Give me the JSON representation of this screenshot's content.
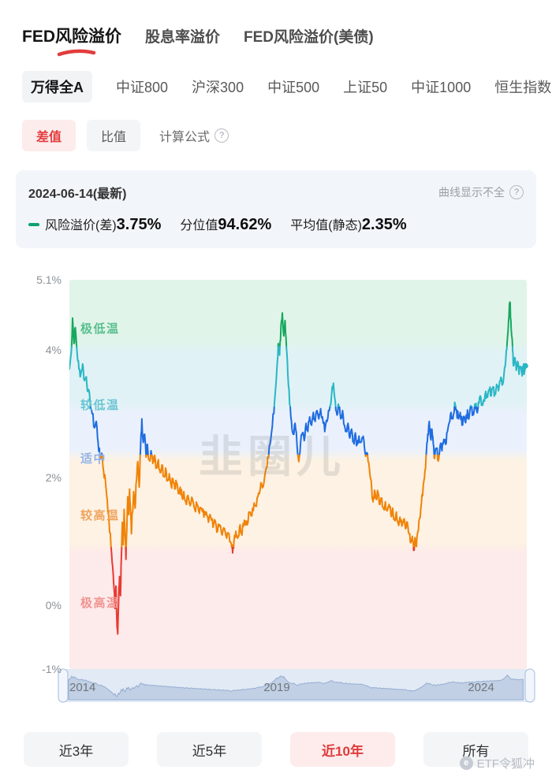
{
  "topnav": {
    "tabs": [
      "FED风险溢价",
      "股息率溢价",
      "FED风险溢价(美债)"
    ],
    "active_index": 0
  },
  "index_tabs": {
    "items": [
      "万得全A",
      "中证800",
      "沪深300",
      "中证500",
      "上证50",
      "中证1000",
      "恒生指数"
    ],
    "active_index": 0
  },
  "mode_tabs": {
    "diff_label": "差值",
    "ratio_label": "比值",
    "formula_label": "计算公式",
    "help_glyph": "?"
  },
  "info_card": {
    "date": "2024-06-14(最新)",
    "curve_note": "曲线显示不全",
    "legend": {
      "premium_label": "风险溢价(差)",
      "premium_value": "3.75%",
      "percentile_label": "分位值",
      "percentile_value": "94.62%",
      "mean_label": "平均值(静态)",
      "mean_value": "2.35%"
    },
    "legend_color": "#0ba26e"
  },
  "watermark_center": "韭圈儿",
  "range_buttons": {
    "items": [
      "近3年",
      "近5年",
      "近10年",
      "所有"
    ],
    "active_index": 2
  },
  "footer_watermark": "ETF令狐冲",
  "chart_data": {
    "type": "line",
    "series_name": "风险溢价(差)",
    "latest": {
      "date": "2024-06-14",
      "value": 3.75,
      "percentile": 94.62,
      "mean_static": 2.35
    },
    "xlim": [
      2014.45,
      2024.48
    ],
    "ylim": [
      5.1,
      -1.0
    ],
    "y_ticks": [
      {
        "v": 5.1,
        "label": "5.1%"
      },
      {
        "v": 4,
        "label": "4%"
      },
      {
        "v": 2,
        "label": "2%"
      },
      {
        "v": 0,
        "label": "0%"
      },
      {
        "v": -1,
        "label": "-1%"
      }
    ],
    "x_ticks": [
      "2014",
      "2019",
      "2024"
    ],
    "zones": [
      {
        "label": "极低温",
        "max": 5.1,
        "min": 4.05,
        "band": "#e1f4e9",
        "line": "#16a85e",
        "label_color": "#58bf8e",
        "label_v": 4.32
      },
      {
        "label": "较低温",
        "max": 4.05,
        "min": 3.1,
        "band": "#e0f2f5",
        "line": "#29b6c5",
        "label_color": "#6cc5d2",
        "label_v": 3.12
      },
      {
        "label": "适中",
        "max": 3.1,
        "min": 2.35,
        "band": "#eaf1fc",
        "line": "#1f6ce0",
        "label_color": "#8fb3ea",
        "label_v": 2.28
      },
      {
        "label": "较高温",
        "max": 2.35,
        "min": 0.9,
        "band": "#fdf2e3",
        "line": "#f08307",
        "label_color": "#f0a45d",
        "label_v": 1.4
      },
      {
        "label": "极高温",
        "max": 0.9,
        "min": -1.2,
        "band": "#fdeaea",
        "line": "#e93a32",
        "label_color": "#f09490",
        "label_v": 0.02
      }
    ],
    "series": [
      [
        2014.45,
        3.7
      ],
      [
        2014.49,
        3.95
      ],
      [
        2014.52,
        4.5
      ],
      [
        2014.55,
        4.1
      ],
      [
        2014.58,
        4.35
      ],
      [
        2014.62,
        3.95
      ],
      [
        2014.66,
        3.7
      ],
      [
        2014.7,
        3.62
      ],
      [
        2014.74,
        3.78
      ],
      [
        2014.78,
        3.52
      ],
      [
        2014.82,
        3.58
      ],
      [
        2014.86,
        3.35
      ],
      [
        2014.9,
        3.22
      ],
      [
        2014.95,
        3.0
      ],
      [
        2015.0,
        2.78
      ],
      [
        2015.04,
        2.88
      ],
      [
        2015.08,
        2.55
      ],
      [
        2015.12,
        2.3
      ],
      [
        2015.16,
        2.38
      ],
      [
        2015.2,
        2.1
      ],
      [
        2015.24,
        1.95
      ],
      [
        2015.28,
        1.65
      ],
      [
        2015.32,
        1.3
      ],
      [
        2015.36,
        0.95
      ],
      [
        2015.4,
        0.6
      ],
      [
        2015.43,
        0.25
      ],
      [
        2015.45,
        -0.05
      ],
      [
        2015.47,
        0.3
      ],
      [
        2015.49,
        -0.2
      ],
      [
        2015.51,
        -0.45
      ],
      [
        2015.53,
        0.1
      ],
      [
        2015.55,
        0.45
      ],
      [
        2015.57,
        0.15
      ],
      [
        2015.59,
        0.75
      ],
      [
        2015.61,
        1.3
      ],
      [
        2015.63,
        0.95
      ],
      [
        2015.65,
        1.5
      ],
      [
        2015.67,
        1.1
      ],
      [
        2015.69,
        0.72
      ],
      [
        2015.71,
        1.2
      ],
      [
        2015.73,
        1.7
      ],
      [
        2015.75,
        1.42
      ],
      [
        2015.77,
        1.82
      ],
      [
        2015.79,
        1.5
      ],
      [
        2015.81,
        1.12
      ],
      [
        2015.83,
        1.45
      ],
      [
        2015.86,
        1.78
      ],
      [
        2015.89,
        1.52
      ],
      [
        2015.92,
        1.95
      ],
      [
        2015.95,
        2.25
      ],
      [
        2015.98,
        1.85
      ],
      [
        2016.01,
        2.45
      ],
      [
        2016.04,
        2.92
      ],
      [
        2016.07,
        2.55
      ],
      [
        2016.1,
        2.68
      ],
      [
        2016.13,
        2.32
      ],
      [
        2016.16,
        2.52
      ],
      [
        2016.2,
        2.28
      ],
      [
        2016.24,
        2.42
      ],
      [
        2016.28,
        2.22
      ],
      [
        2016.32,
        2.35
      ],
      [
        2016.36,
        2.15
      ],
      [
        2016.4,
        2.28
      ],
      [
        2016.44,
        2.08
      ],
      [
        2016.48,
        2.2
      ],
      [
        2016.52,
        2.02
      ],
      [
        2016.56,
        2.15
      ],
      [
        2016.6,
        1.95
      ],
      [
        2016.64,
        2.06
      ],
      [
        2016.68,
        1.88
      ],
      [
        2016.72,
        1.98
      ],
      [
        2016.76,
        1.82
      ],
      [
        2016.8,
        1.92
      ],
      [
        2016.84,
        1.75
      ],
      [
        2016.88,
        1.85
      ],
      [
        2016.92,
        1.7
      ],
      [
        2016.96,
        1.78
      ],
      [
        2017.0,
        1.62
      ],
      [
        2017.05,
        1.72
      ],
      [
        2017.1,
        1.56
      ],
      [
        2017.15,
        1.66
      ],
      [
        2017.2,
        1.5
      ],
      [
        2017.25,
        1.58
      ],
      [
        2017.3,
        1.44
      ],
      [
        2017.35,
        1.52
      ],
      [
        2017.4,
        1.38
      ],
      [
        2017.45,
        1.46
      ],
      [
        2017.5,
        1.3
      ],
      [
        2017.55,
        1.38
      ],
      [
        2017.6,
        1.22
      ],
      [
        2017.65,
        1.32
      ],
      [
        2017.7,
        1.16
      ],
      [
        2017.75,
        1.26
      ],
      [
        2017.8,
        1.1
      ],
      [
        2017.85,
        1.2
      ],
      [
        2017.9,
        1.05
      ],
      [
        2017.95,
        1.12
      ],
      [
        2018.0,
        0.96
      ],
      [
        2018.03,
        0.82
      ],
      [
        2018.06,
        1.02
      ],
      [
        2018.1,
        1.16
      ],
      [
        2018.14,
        1.05
      ],
      [
        2018.18,
        1.22
      ],
      [
        2018.22,
        1.12
      ],
      [
        2018.26,
        1.28
      ],
      [
        2018.3,
        1.32
      ],
      [
        2018.35,
        1.26
      ],
      [
        2018.4,
        1.46
      ],
      [
        2018.45,
        1.4
      ],
      [
        2018.5,
        1.6
      ],
      [
        2018.55,
        1.55
      ],
      [
        2018.6,
        1.76
      ],
      [
        2018.65,
        1.92
      ],
      [
        2018.7,
        1.86
      ],
      [
        2018.75,
        2.1
      ],
      [
        2018.8,
        2.32
      ],
      [
        2018.85,
        2.52
      ],
      [
        2018.9,
        2.8
      ],
      [
        2018.95,
        3.2
      ],
      [
        2019.0,
        3.7
      ],
      [
        2019.03,
        4.1
      ],
      [
        2019.06,
        3.92
      ],
      [
        2019.09,
        4.38
      ],
      [
        2019.12,
        4.58
      ],
      [
        2019.15,
        4.22
      ],
      [
        2019.18,
        4.46
      ],
      [
        2019.21,
        4.02
      ],
      [
        2019.24,
        3.62
      ],
      [
        2019.28,
        3.15
      ],
      [
        2019.32,
        2.88
      ],
      [
        2019.36,
        2.68
      ],
      [
        2019.4,
        2.85
      ],
      [
        2019.44,
        2.52
      ],
      [
        2019.48,
        2.25
      ],
      [
        2019.52,
        2.55
      ],
      [
        2019.56,
        2.7
      ],
      [
        2019.6,
        2.58
      ],
      [
        2019.64,
        2.85
      ],
      [
        2019.68,
        2.72
      ],
      [
        2019.72,
        2.95
      ],
      [
        2019.76,
        2.82
      ],
      [
        2019.8,
        3.02
      ],
      [
        2019.84,
        2.88
      ],
      [
        2019.88,
        3.05
      ],
      [
        2019.92,
        2.92
      ],
      [
        2019.96,
        3.08
      ],
      [
        2020.0,
        2.95
      ],
      [
        2020.05,
        2.72
      ],
      [
        2020.1,
        2.88
      ],
      [
        2020.15,
        3.05
      ],
      [
        2020.2,
        3.3
      ],
      [
        2020.24,
        3.48
      ],
      [
        2020.28,
        3.2
      ],
      [
        2020.32,
        2.98
      ],
      [
        2020.36,
        3.12
      ],
      [
        2020.4,
        2.92
      ],
      [
        2020.44,
        3.05
      ],
      [
        2020.48,
        2.82
      ],
      [
        2020.52,
        2.72
      ],
      [
        2020.56,
        2.85
      ],
      [
        2020.6,
        2.62
      ],
      [
        2020.64,
        2.76
      ],
      [
        2020.68,
        2.56
      ],
      [
        2020.72,
        2.7
      ],
      [
        2020.76,
        2.52
      ],
      [
        2020.8,
        2.65
      ],
      [
        2020.84,
        2.55
      ],
      [
        2020.88,
        2.62
      ],
      [
        2020.92,
        2.48
      ],
      [
        2020.96,
        2.38
      ],
      [
        2021.0,
        2.25
      ],
      [
        2021.04,
        2.05
      ],
      [
        2021.08,
        1.82
      ],
      [
        2021.11,
        1.62
      ],
      [
        2021.14,
        1.8
      ],
      [
        2021.18,
        1.66
      ],
      [
        2021.22,
        1.76
      ],
      [
        2021.26,
        1.58
      ],
      [
        2021.3,
        1.68
      ],
      [
        2021.34,
        1.52
      ],
      [
        2021.38,
        1.62
      ],
      [
        2021.42,
        1.48
      ],
      [
        2021.46,
        1.58
      ],
      [
        2021.5,
        1.42
      ],
      [
        2021.54,
        1.52
      ],
      [
        2021.58,
        1.34
      ],
      [
        2021.62,
        1.46
      ],
      [
        2021.66,
        1.28
      ],
      [
        2021.7,
        1.38
      ],
      [
        2021.74,
        1.24
      ],
      [
        2021.78,
        1.34
      ],
      [
        2021.82,
        1.2
      ],
      [
        2021.86,
        1.3
      ],
      [
        2021.9,
        1.12
      ],
      [
        2021.94,
        0.98
      ],
      [
        2021.97,
        1.08
      ],
      [
        2022.0,
        0.86
      ],
      [
        2022.03,
        1.06
      ],
      [
        2022.06,
        0.92
      ],
      [
        2022.09,
        1.15
      ],
      [
        2022.13,
        1.36
      ],
      [
        2022.17,
        1.6
      ],
      [
        2022.21,
        1.88
      ],
      [
        2022.25,
        2.12
      ],
      [
        2022.28,
        2.42
      ],
      [
        2022.31,
        2.68
      ],
      [
        2022.34,
        2.88
      ],
      [
        2022.37,
        2.62
      ],
      [
        2022.4,
        2.76
      ],
      [
        2022.43,
        2.52
      ],
      [
        2022.46,
        2.3
      ],
      [
        2022.5,
        2.46
      ],
      [
        2022.54,
        2.26
      ],
      [
        2022.58,
        2.5
      ],
      [
        2022.62,
        2.42
      ],
      [
        2022.66,
        2.6
      ],
      [
        2022.7,
        2.52
      ],
      [
        2022.74,
        2.72
      ],
      [
        2022.78,
        2.86
      ],
      [
        2022.82,
        3.02
      ],
      [
        2022.86,
        2.92
      ],
      [
        2022.9,
        3.18
      ],
      [
        2022.94,
        3.06
      ],
      [
        2022.98,
        2.92
      ],
      [
        2023.02,
        3.02
      ],
      [
        2023.06,
        2.82
      ],
      [
        2023.1,
        2.96
      ],
      [
        2023.14,
        2.86
      ],
      [
        2023.18,
        3.06
      ],
      [
        2023.22,
        2.96
      ],
      [
        2023.26,
        3.12
      ],
      [
        2023.3,
        3.02
      ],
      [
        2023.34,
        3.15
      ],
      [
        2023.38,
        3.05
      ],
      [
        2023.42,
        3.18
      ],
      [
        2023.46,
        3.28
      ],
      [
        2023.5,
        3.15
      ],
      [
        2023.54,
        3.22
      ],
      [
        2023.58,
        3.35
      ],
      [
        2023.62,
        3.26
      ],
      [
        2023.66,
        3.38
      ],
      [
        2023.7,
        3.28
      ],
      [
        2023.74,
        3.42
      ],
      [
        2023.78,
        3.32
      ],
      [
        2023.82,
        3.46
      ],
      [
        2023.86,
        3.36
      ],
      [
        2023.9,
        3.52
      ],
      [
        2023.94,
        3.45
      ],
      [
        2023.98,
        3.62
      ],
      [
        2024.02,
        3.85
      ],
      [
        2024.05,
        4.12
      ],
      [
        2024.08,
        4.45
      ],
      [
        2024.11,
        4.75
      ],
      [
        2024.13,
        4.48
      ],
      [
        2024.15,
        4.22
      ],
      [
        2024.17,
        3.98
      ],
      [
        2024.19,
        3.75
      ],
      [
        2024.22,
        3.88
      ],
      [
        2024.25,
        3.68
      ],
      [
        2024.28,
        3.82
      ],
      [
        2024.31,
        3.62
      ],
      [
        2024.34,
        3.74
      ],
      [
        2024.37,
        3.64
      ],
      [
        2024.4,
        3.72
      ],
      [
        2024.43,
        3.66
      ],
      [
        2024.45,
        3.75
      ]
    ]
  }
}
